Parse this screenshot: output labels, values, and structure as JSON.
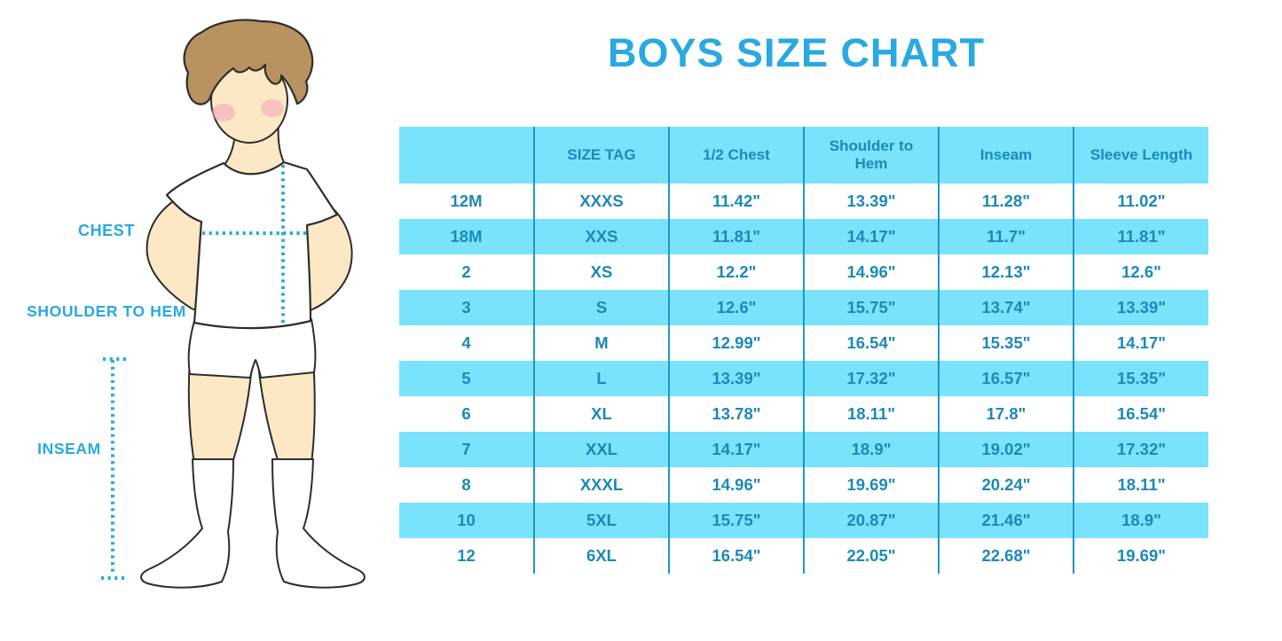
{
  "title": "BOYS SIZE CHART",
  "diagram": {
    "labels": {
      "chest": "CHEST",
      "shoulder_to_hem": "SHOULDER TO HEM",
      "inseam": "INSEAM"
    }
  },
  "size_table": {
    "columns": [
      "",
      "SIZE TAG",
      "1/2 Chest",
      "Shoulder to Hem",
      "Inseam",
      "Sleeve Length"
    ],
    "rows": [
      [
        "12M",
        "XXXS",
        "11.42\"",
        "13.39\"",
        "11.28\"",
        "11.02\""
      ],
      [
        "18M",
        "XXS",
        "11.81\"",
        "14.17\"",
        "11.7\"",
        "11.81\""
      ],
      [
        "2",
        "XS",
        "12.2\"",
        "14.96\"",
        "12.13\"",
        "12.6\""
      ],
      [
        "3",
        "S",
        "12.6\"",
        "15.75\"",
        "13.74\"",
        "13.39\""
      ],
      [
        "4",
        "M",
        "12.99\"",
        "16.54\"",
        "15.35\"",
        "14.17\""
      ],
      [
        "5",
        "L",
        "13.39\"",
        "17.32\"",
        "16.57\"",
        "15.35\""
      ],
      [
        "6",
        "XL",
        "13.78\"",
        "18.11\"",
        "17.8\"",
        "16.54\""
      ],
      [
        "7",
        "XXL",
        "14.17\"",
        "18.9\"",
        "19.02\"",
        "17.32\""
      ],
      [
        "8",
        "XXXL",
        "14.96\"",
        "19.69\"",
        "20.24\"",
        "18.11\""
      ],
      [
        "10",
        "5XL",
        "15.75\"",
        "20.87\"",
        "21.46\"",
        "18.9\""
      ],
      [
        "12",
        "6XL",
        "16.54\"",
        "22.05\"",
        "22.68\"",
        "19.69\""
      ]
    ]
  },
  "chart_data": {
    "type": "table",
    "title": "BOYS SIZE CHART",
    "columns": [
      "",
      "SIZE TAG",
      "1/2 Chest",
      "Shoulder to Hem",
      "Inseam",
      "Sleeve Length"
    ],
    "rows": [
      [
        "12M",
        "XXXS",
        "11.42\"",
        "13.39\"",
        "11.28\"",
        "11.02\""
      ],
      [
        "18M",
        "XXS",
        "11.81\"",
        "14.17\"",
        "11.7\"",
        "11.81\""
      ],
      [
        "2",
        "XS",
        "12.2\"",
        "14.96\"",
        "12.13\"",
        "12.6\""
      ],
      [
        "3",
        "S",
        "12.6\"",
        "15.75\"",
        "13.74\"",
        "13.39\""
      ],
      [
        "4",
        "M",
        "12.99\"",
        "16.54\"",
        "15.35\"",
        "14.17\""
      ],
      [
        "5",
        "L",
        "13.39\"",
        "17.32\"",
        "16.57\"",
        "15.35\""
      ],
      [
        "6",
        "XL",
        "13.78\"",
        "18.11\"",
        "17.8\"",
        "16.54\""
      ],
      [
        "7",
        "XXL",
        "14.17\"",
        "18.9\"",
        "19.02\"",
        "17.32\""
      ],
      [
        "8",
        "XXXL",
        "14.96\"",
        "19.69\"",
        "20.24\"",
        "18.11\""
      ],
      [
        "10",
        "5XL",
        "15.75\"",
        "20.87\"",
        "21.46\"",
        "18.9\""
      ],
      [
        "12",
        "6XL",
        "16.54\"",
        "22.05\"",
        "22.68\"",
        "19.69\""
      ]
    ]
  },
  "colors": {
    "accent_blue": "#29a9e1",
    "table_row_cyan": "#78e3fb",
    "table_grid_line": "#2196c5",
    "table_text": "#1c89b8",
    "skin": "#fce8c4",
    "hair_brown": "#b8925f",
    "cheek_pink": "#f2a6bc",
    "outline": "#2d2d2d"
  }
}
